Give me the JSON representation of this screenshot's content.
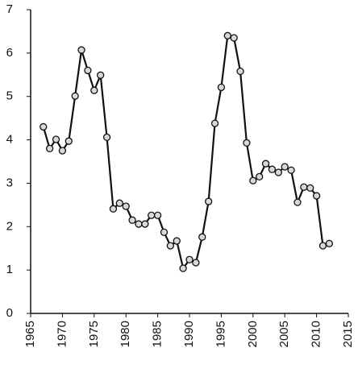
{
  "chart_data": {
    "type": "line",
    "x": [
      1967,
      1968,
      1969,
      1970,
      1971,
      1972,
      1973,
      1974,
      1975,
      1976,
      1977,
      1978,
      1979,
      1980,
      1981,
      1982,
      1983,
      1984,
      1985,
      1986,
      1987,
      1988,
      1989,
      1990,
      1991,
      1992,
      1993,
      1994,
      1995,
      1996,
      1997,
      1998,
      1999,
      2000,
      2001,
      2002,
      2003,
      2004,
      2005,
      2006,
      2007,
      2008,
      2009,
      2010,
      2011,
      2012
    ],
    "series": [
      {
        "color": "#111111",
        "marker_color": "#d8d8d8",
        "values": [
          4.3,
          3.8,
          4.01,
          3.75,
          3.97,
          5.01,
          6.07,
          5.6,
          5.14,
          5.49,
          4.06,
          2.41,
          2.54,
          2.47,
          2.15,
          2.06,
          2.06,
          2.26,
          2.26,
          1.87,
          1.56,
          1.67,
          1.04,
          1.24,
          1.17,
          1.76,
          2.58,
          4.38,
          5.21,
          6.4,
          6.35,
          5.58,
          3.93,
          3.06,
          3.15,
          3.45,
          3.32,
          3.25,
          3.38,
          3.3,
          2.56,
          2.91,
          2.89,
          2.71,
          1.56,
          1.61
        ]
      }
    ],
    "xlim": [
      1965,
      2015
    ],
    "xticks": [
      1965,
      1970,
      1975,
      1980,
      1985,
      1990,
      1995,
      2000,
      2005,
      2010,
      2015
    ],
    "ylim": [
      0,
      7
    ],
    "yticks": [
      0,
      1,
      2,
      3,
      4,
      5,
      6,
      7
    ],
    "grid": false
  }
}
